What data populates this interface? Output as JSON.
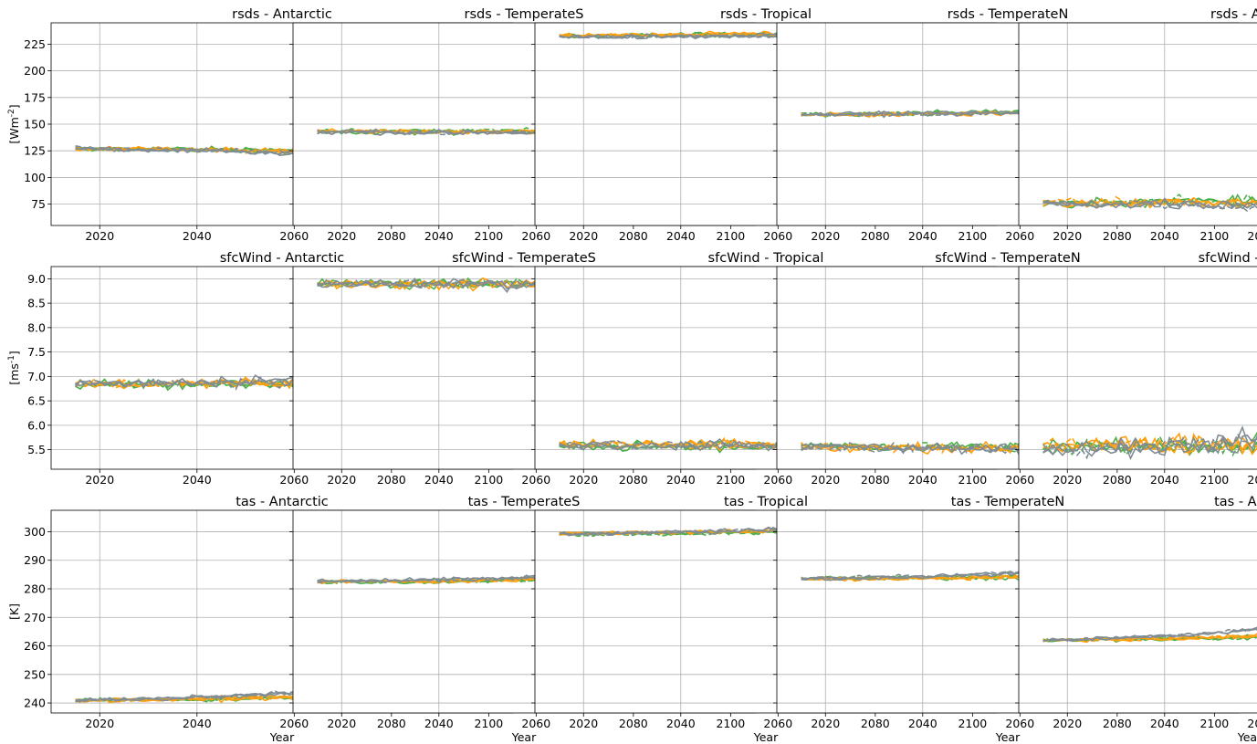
{
  "figure": {
    "xlabel": "Year",
    "row_ylabels": [
      "[Wm$^{-2}$]",
      "[ms$^{-1}$]",
      "[K]"
    ],
    "colors": {
      "green": "#4daf4a",
      "orange": "#ff9f10",
      "gray": "#7f8c94"
    }
  },
  "chart_data": [
    {
      "type": "line",
      "title": "rsds - Antarctic",
      "ylabel": "[Wm$^{-2}$]",
      "xlabel": "",
      "xlim": [
        2010,
        2105
      ],
      "ylim": [
        55,
        245
      ],
      "xticks": [
        2020,
        2040,
        2060,
        2080,
        2100
      ],
      "yticks": [
        75,
        100,
        125,
        150,
        175,
        200,
        225
      ],
      "grid": true,
      "series": [
        {
          "color": "green",
          "values": [
            127,
            122
          ]
        },
        {
          "color": "orange",
          "values": [
            127,
            120
          ]
        },
        {
          "color": "gray",
          "values": [
            127,
            115
          ]
        }
      ]
    },
    {
      "type": "line",
      "title": "rsds - TemperateS",
      "xlim": [
        2010,
        2105
      ],
      "ylim": [
        55,
        245
      ],
      "xticks": [
        2020,
        2040,
        2060,
        2080,
        2100
      ],
      "yticks": [
        75,
        100,
        125,
        150,
        175,
        200,
        225
      ],
      "grid": true,
      "series": [
        {
          "color": "green",
          "values": [
            143,
            143
          ]
        },
        {
          "color": "orange",
          "values": [
            143,
            142
          ]
        },
        {
          "color": "gray",
          "values": [
            143,
            141
          ]
        }
      ]
    },
    {
      "type": "line",
      "title": "rsds - Tropical",
      "xlim": [
        2010,
        2105
      ],
      "ylim": [
        55,
        245
      ],
      "xticks": [
        2020,
        2040,
        2060,
        2080,
        2100
      ],
      "yticks": [
        75,
        100,
        125,
        150,
        175,
        200,
        225
      ],
      "grid": true,
      "series": [
        {
          "color": "green",
          "values": [
            233,
            237
          ]
        },
        {
          "color": "orange",
          "values": [
            233,
            237
          ]
        },
        {
          "color": "gray",
          "values": [
            232,
            237
          ]
        }
      ]
    },
    {
      "type": "line",
      "title": "rsds - TemperateN",
      "xlim": [
        2010,
        2105
      ],
      "ylim": [
        55,
        245
      ],
      "xticks": [
        2020,
        2040,
        2060,
        2080,
        2100
      ],
      "yticks": [
        75,
        100,
        125,
        150,
        175,
        200,
        225
      ],
      "grid": true,
      "series": [
        {
          "color": "green",
          "values": [
            159,
            167
          ]
        },
        {
          "color": "orange",
          "values": [
            159,
            165
          ]
        },
        {
          "color": "gray",
          "values": [
            159,
            163
          ]
        }
      ]
    },
    {
      "type": "line",
      "title": "rsds - Arctic",
      "xlim": [
        2010,
        2105
      ],
      "ylim": [
        55,
        245
      ],
      "xticks": [
        2020,
        2040,
        2060,
        2080,
        2100
      ],
      "yticks": [
        75,
        100,
        125,
        150,
        175,
        200,
        225
      ],
      "grid": true,
      "series": [
        {
          "color": "green",
          "values": [
            76,
            84
          ]
        },
        {
          "color": "orange",
          "values": [
            76,
            78
          ]
        },
        {
          "color": "gray",
          "values": [
            76,
            65
          ]
        }
      ]
    },
    {
      "type": "line",
      "title": "sfcWind - Antarctic",
      "ylabel": "[ms$^{-1}$]",
      "xlim": [
        2010,
        2105
      ],
      "ylim": [
        5.1,
        9.25
      ],
      "xticks": [
        2020,
        2040,
        2060,
        2080,
        2100
      ],
      "yticks": [
        5.5,
        6.0,
        6.5,
        7.0,
        7.5,
        8.0,
        8.5,
        9.0
      ],
      "grid": true,
      "series": [
        {
          "color": "green",
          "values": [
            6.85,
            6.85
          ]
        },
        {
          "color": "orange",
          "values": [
            6.85,
            6.9
          ]
        },
        {
          "color": "gray",
          "values": [
            6.85,
            7.0
          ]
        }
      ]
    },
    {
      "type": "line",
      "title": "sfcWind - TemperateS",
      "xlim": [
        2010,
        2105
      ],
      "ylim": [
        5.1,
        9.25
      ],
      "xticks": [
        2020,
        2040,
        2060,
        2080,
        2100
      ],
      "yticks": [
        5.5,
        6.0,
        6.5,
        7.0,
        7.5,
        8.0,
        8.5,
        9.0
      ],
      "grid": true,
      "series": [
        {
          "color": "green",
          "values": [
            8.9,
            8.9
          ]
        },
        {
          "color": "orange",
          "values": [
            8.9,
            8.9
          ]
        },
        {
          "color": "gray",
          "values": [
            8.9,
            8.85
          ]
        }
      ]
    },
    {
      "type": "line",
      "title": "sfcWind - Tropical",
      "xlim": [
        2010,
        2105
      ],
      "ylim": [
        5.1,
        9.25
      ],
      "xticks": [
        2020,
        2040,
        2060,
        2080,
        2100
      ],
      "yticks": [
        5.5,
        6.0,
        6.5,
        7.0,
        7.5,
        8.0,
        8.5,
        9.0
      ],
      "grid": true,
      "series": [
        {
          "color": "green",
          "values": [
            5.58,
            5.56
          ]
        },
        {
          "color": "orange",
          "values": [
            5.6,
            5.58
          ]
        },
        {
          "color": "gray",
          "values": [
            5.58,
            5.55
          ]
        }
      ]
    },
    {
      "type": "line",
      "title": "sfcWind - TemperateN",
      "xlim": [
        2010,
        2105
      ],
      "ylim": [
        5.1,
        9.25
      ],
      "xticks": [
        2020,
        2040,
        2060,
        2080,
        2100
      ],
      "yticks": [
        5.5,
        6.0,
        6.5,
        7.0,
        7.5,
        8.0,
        8.5,
        9.0
      ],
      "grid": true,
      "series": [
        {
          "color": "green",
          "values": [
            5.57,
            5.47
          ]
        },
        {
          "color": "orange",
          "values": [
            5.57,
            5.47
          ]
        },
        {
          "color": "gray",
          "values": [
            5.57,
            5.33
          ]
        }
      ]
    },
    {
      "type": "line",
      "title": "sfcWind - Arctic",
      "xlim": [
        2010,
        2105
      ],
      "ylim": [
        5.1,
        9.25
      ],
      "xticks": [
        2020,
        2040,
        2060,
        2080,
        2100
      ],
      "yticks": [
        5.5,
        6.0,
        6.5,
        7.0,
        7.5,
        8.0,
        8.5,
        9.0
      ],
      "grid": true,
      "series": [
        {
          "color": "green",
          "values": [
            5.55,
            5.6
          ]
        },
        {
          "color": "orange",
          "values": [
            5.6,
            5.7
          ]
        },
        {
          "color": "gray",
          "values": [
            5.5,
            6.0
          ]
        }
      ]
    },
    {
      "type": "line",
      "title": "tas - Antarctic",
      "ylabel": "[K]",
      "xlim": [
        2010,
        2105
      ],
      "ylim": [
        236.5,
        307.5
      ],
      "xticks": [
        2020,
        2040,
        2060,
        2080,
        2100
      ],
      "yticks": [
        240,
        250,
        260,
        270,
        280,
        290,
        300
      ],
      "grid": true,
      "series": [
        {
          "color": "green",
          "values": [
            241,
            243
          ]
        },
        {
          "color": "orange",
          "values": [
            241,
            244.5
          ]
        },
        {
          "color": "gray",
          "values": [
            241,
            248.5
          ]
        }
      ]
    },
    {
      "type": "line",
      "title": "tas - TemperateS",
      "xlim": [
        2010,
        2105
      ],
      "ylim": [
        236.5,
        307.5
      ],
      "xticks": [
        2020,
        2040,
        2060,
        2080,
        2100
      ],
      "yticks": [
        240,
        250,
        260,
        270,
        280,
        290,
        300
      ],
      "grid": true,
      "series": [
        {
          "color": "green",
          "values": [
            282.5,
            284
          ]
        },
        {
          "color": "orange",
          "values": [
            282.5,
            284.8
          ]
        },
        {
          "color": "gray",
          "values": [
            282.5,
            286.8
          ]
        }
      ]
    },
    {
      "type": "line",
      "title": "tas - Tropical",
      "xlim": [
        2010,
        2105
      ],
      "ylim": [
        236.5,
        307.5
      ],
      "xticks": [
        2020,
        2040,
        2060,
        2080,
        2100
      ],
      "yticks": [
        240,
        250,
        260,
        270,
        280,
        290,
        300
      ],
      "grid": true,
      "series": [
        {
          "color": "green",
          "values": [
            299.3,
            300.8
          ]
        },
        {
          "color": "orange",
          "values": [
            299.3,
            301.8
          ]
        },
        {
          "color": "gray",
          "values": [
            299.3,
            304.2
          ]
        }
      ]
    },
    {
      "type": "line",
      "title": "tas - TemperateN",
      "xlim": [
        2010,
        2105
      ],
      "ylim": [
        236.5,
        307.5
      ],
      "xticks": [
        2020,
        2040,
        2060,
        2080,
        2100
      ],
      "yticks": [
        240,
        250,
        260,
        270,
        280,
        290,
        300
      ],
      "grid": true,
      "series": [
        {
          "color": "green",
          "values": [
            283.5,
            284.8
          ]
        },
        {
          "color": "orange",
          "values": [
            283.5,
            285.4
          ]
        },
        {
          "color": "gray",
          "values": [
            283.5,
            289.4
          ]
        }
      ]
    },
    {
      "type": "line",
      "title": "tas - Arctic",
      "xlim": [
        2010,
        2105
      ],
      "ylim": [
        236.5,
        307.5
      ],
      "xticks": [
        2020,
        2040,
        2060,
        2080,
        2100
      ],
      "yticks": [
        240,
        250,
        260,
        270,
        280,
        290,
        300
      ],
      "grid": true,
      "series": [
        {
          "color": "green",
          "values": [
            262,
            265
          ]
        },
        {
          "color": "orange",
          "values": [
            262,
            266.5
          ]
        },
        {
          "color": "gray",
          "values": [
            262,
            273.5
          ]
        }
      ]
    }
  ]
}
